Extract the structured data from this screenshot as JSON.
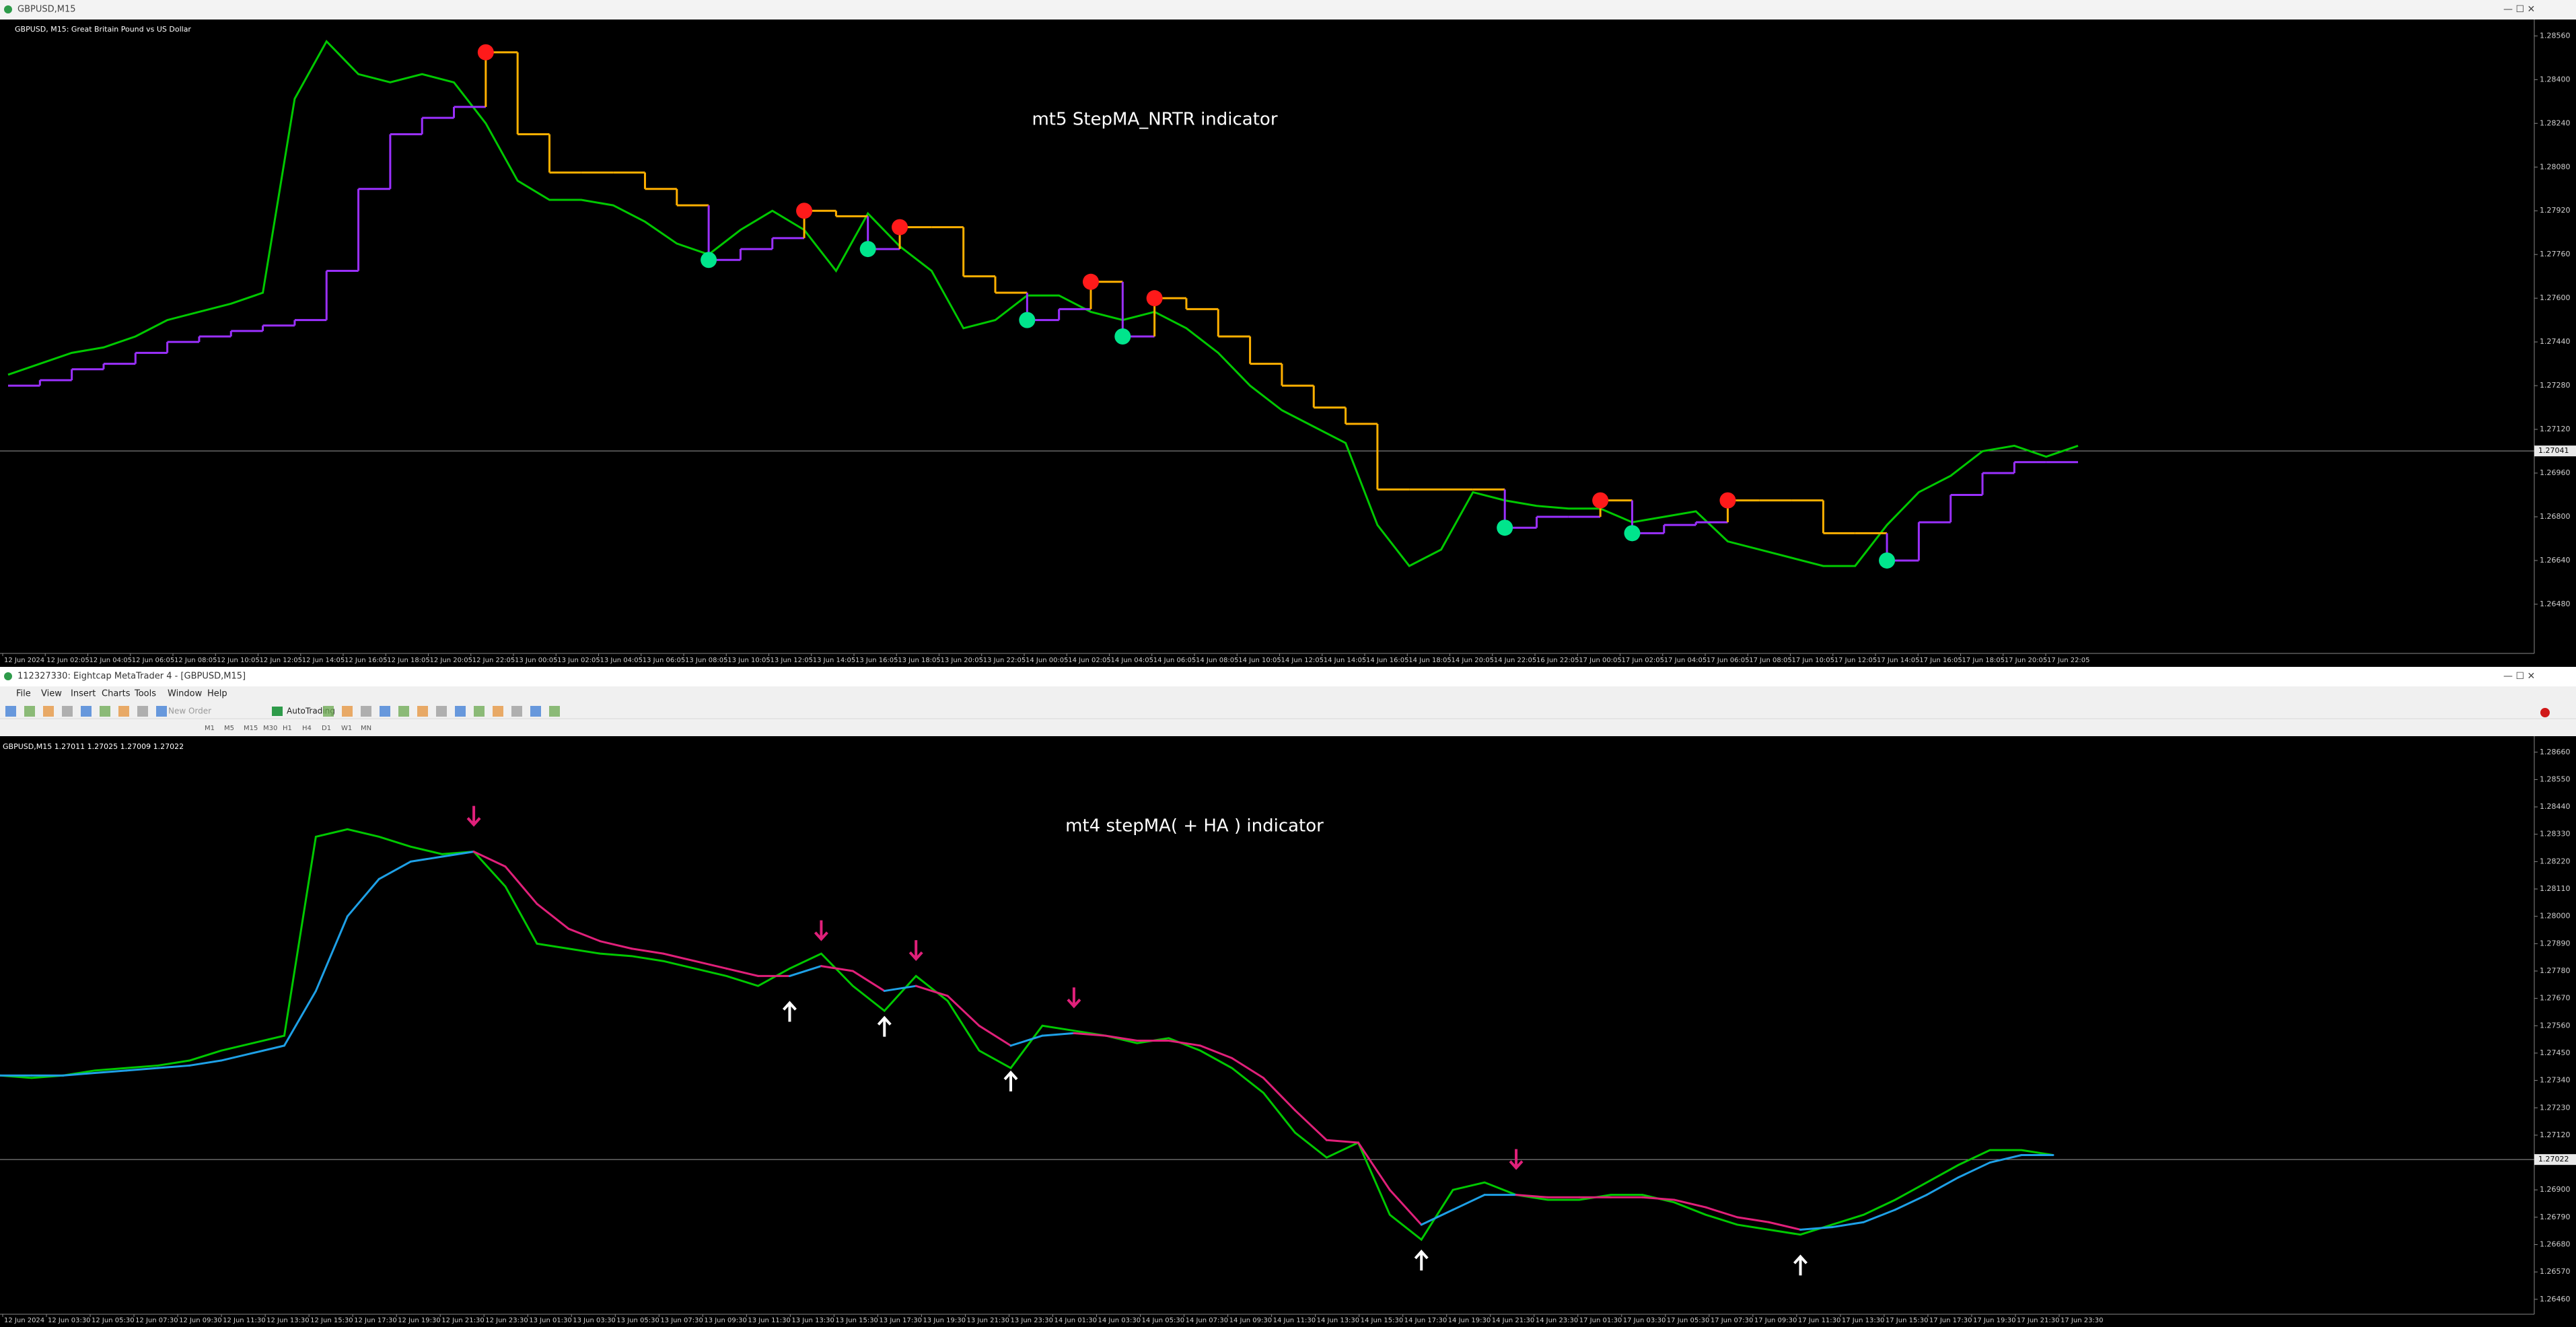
{
  "top_window": {
    "title": "GBPUSD,M15"
  },
  "mt4_window": {
    "title": "112327330: Eightcap MetaTrader 4 - [GBPUSD,M15]",
    "menu": [
      "File",
      "View",
      "Insert",
      "Charts",
      "Tools",
      "Window",
      "Help"
    ],
    "toolbar": {
      "new_order": "New Order",
      "autotrading": "AutoTrading",
      "timeframes": [
        "M1",
        "M5",
        "M15",
        "M30",
        "H1",
        "H4",
        "D1",
        "W1",
        "MN"
      ]
    }
  },
  "chart_data": [
    {
      "type": "line",
      "line_style": "step",
      "header": "GBPUSD, M15:  Great Britain Pound vs US Dollar",
      "annotation": "mt5 StepMA_NRTR indicator",
      "ylim": [
        1.263,
        1.2862
      ],
      "yticks": [
        {
          "value": 1.2648,
          "label": "1.26480"
        },
        {
          "value": 1.2664,
          "label": "1.26640"
        },
        {
          "value": 1.268,
          "label": "1.26800"
        },
        {
          "value": 1.2696,
          "label": "1.26960"
        },
        {
          "value": 1.2712,
          "label": "1.27120"
        },
        {
          "value": 1.2728,
          "label": "1.27280"
        },
        {
          "value": 1.2744,
          "label": "1.27440"
        },
        {
          "value": 1.276,
          "label": "1.27600"
        },
        {
          "value": 1.2776,
          "label": "1.27760"
        },
        {
          "value": 1.2792,
          "label": "1.27920"
        },
        {
          "value": 1.2808,
          "label": "1.28080"
        },
        {
          "value": 1.2824,
          "label": "1.28240"
        },
        {
          "value": 1.284,
          "label": "1.28400"
        },
        {
          "value": 1.2856,
          "label": "1.28560"
        }
      ],
      "current_price": 1.27041,
      "time_labels": [
        "12 Jun 2024",
        "12 Jun 02:05",
        "12 Jun 04:05",
        "12 Jun 06:05",
        "12 Jun 08:05",
        "12 Jun 10:05",
        "12 Jun 12:05",
        "12 Jun 14:05",
        "12 Jun 16:05",
        "12 Jun 18:05",
        "12 Jun 20:05",
        "12 Jun 22:05",
        "13 Jun 00:05",
        "13 Jun 02:05",
        "13 Jun 04:05",
        "13 Jun 06:05",
        "13 Jun 08:05",
        "13 Jun 10:05",
        "13 Jun 12:05",
        "13 Jun 14:05",
        "13 Jun 16:05",
        "13 Jun 18:05",
        "13 Jun 20:05",
        "13 Jun 22:05",
        "14 Jun 00:05",
        "14 Jun 02:05",
        "14 Jun 04:05",
        "14 Jun 06:05",
        "14 Jun 08:05",
        "14 Jun 10:05",
        "14 Jun 12:05",
        "14 Jun 14:05",
        "14 Jun 16:05",
        "14 Jun 18:05",
        "14 Jun 20:05",
        "14 Jun 22:05",
        "16 Jun 22:05",
        "17 Jun 00:05",
        "17 Jun 02:05",
        "17 Jun 04:05",
        "17 Jun 06:05",
        "17 Jun 08:05",
        "17 Jun 10:05",
        "17 Jun 12:05",
        "17 Jun 14:05",
        "17 Jun 16:05",
        "17 Jun 18:05",
        "17 Jun 20:05",
        "17 Jun 22:05"
      ],
      "price": {
        "color": "#00c800",
        "values": [
          1.2732,
          1.2736,
          1.274,
          1.2742,
          1.2746,
          1.2752,
          1.2755,
          1.2758,
          1.2762,
          1.2833,
          1.2854,
          1.2842,
          1.2839,
          1.2842,
          1.2839,
          1.2824,
          1.2803,
          1.2796,
          1.2796,
          1.2794,
          1.2788,
          1.278,
          1.2776,
          1.2785,
          1.2792,
          1.2785,
          1.277,
          1.2791,
          1.2779,
          1.277,
          1.2749,
          1.2752,
          1.2761,
          1.2761,
          1.2755,
          1.2752,
          1.2755,
          1.2749,
          1.274,
          1.2728,
          1.2719,
          1.2713,
          1.2707,
          1.2677,
          1.2662,
          1.2668,
          1.2689,
          1.2686,
          1.2684,
          1.2683,
          1.2683,
          1.2678,
          1.268,
          1.2682,
          1.2671,
          1.2668,
          1.2665,
          1.2662,
          1.2662,
          1.2677,
          1.2689,
          1.2695,
          1.2704,
          1.2706,
          1.2702,
          1.2706
        ]
      },
      "indicator": {
        "up_color": "#9b30ff",
        "down_color": "#ffb000",
        "buy_color": "#00e58c",
        "sell_color": "#ff1a1a",
        "values": [
          1.2728,
          1.273,
          1.2734,
          1.2736,
          1.274,
          1.2744,
          1.2746,
          1.2748,
          1.275,
          1.2752,
          1.277,
          1.28,
          1.282,
          1.2826,
          1.283,
          1.285,
          1.282,
          1.2806,
          1.2806,
          1.2806,
          1.28,
          1.2794,
          1.2774,
          1.2778,
          1.2782,
          1.2792,
          1.279,
          1.2778,
          1.2786,
          1.2786,
          1.2768,
          1.2762,
          1.2752,
          1.2756,
          1.2766,
          1.2746,
          1.276,
          1.2756,
          1.2746,
          1.2736,
          1.2728,
          1.272,
          1.2714,
          1.269,
          1.269,
          1.269,
          1.269,
          1.2676,
          1.268,
          1.268,
          1.2686,
          1.2674,
          1.2677,
          1.2678,
          1.2686,
          1.2686,
          1.2686,
          1.2674,
          1.2674,
          1.2664,
          1.2678,
          1.2688,
          1.2696,
          1.27,
          1.27,
          1.27
        ]
      }
    },
    {
      "type": "line",
      "line_style": "smooth",
      "header": "GBPUSD,M15  1.27011 1.27025 1.27009 1.27022",
      "annotation": "mt4 stepMA( + HA ) indicator",
      "ylim": [
        1.264,
        1.287
      ],
      "yticks": [
        {
          "value": 1.2646,
          "label": "1.26460"
        },
        {
          "value": 1.2657,
          "label": "1.26570"
        },
        {
          "value": 1.2668,
          "label": "1.26680"
        },
        {
          "value": 1.2679,
          "label": "1.26790"
        },
        {
          "value": 1.269,
          "label": "1.26900"
        },
        {
          "value": 1.2701,
          "label": "1.27010"
        },
        {
          "value": 1.2712,
          "label": "1.27120"
        },
        {
          "value": 1.2723,
          "label": "1.27230"
        },
        {
          "value": 1.2734,
          "label": "1.27340"
        },
        {
          "value": 1.2745,
          "label": "1.27450"
        },
        {
          "value": 1.2756,
          "label": "1.27560"
        },
        {
          "value": 1.2767,
          "label": "1.27670"
        },
        {
          "value": 1.2778,
          "label": "1.27780"
        },
        {
          "value": 1.2789,
          "label": "1.27890"
        },
        {
          "value": 1.28,
          "label": "1.28000"
        },
        {
          "value": 1.2811,
          "label": "1.28110"
        },
        {
          "value": 1.2822,
          "label": "1.28220"
        },
        {
          "value": 1.2833,
          "label": "1.28330"
        },
        {
          "value": 1.2844,
          "label": "1.28440"
        },
        {
          "value": 1.2855,
          "label": "1.28550"
        },
        {
          "value": 1.2866,
          "label": "1.28660"
        }
      ],
      "current_price": 1.27022,
      "time_labels": [
        "12 Jun 2024",
        "12 Jun 03:30",
        "12 Jun 05:30",
        "12 Jun 07:30",
        "12 Jun 09:30",
        "12 Jun 11:30",
        "12 Jun 13:30",
        "12 Jun 15:30",
        "12 Jun 17:30",
        "12 Jun 19:30",
        "12 Jun 21:30",
        "12 Jun 23:30",
        "13 Jun 01:30",
        "13 Jun 03:30",
        "13 Jun 05:30",
        "13 Jun 07:30",
        "13 Jun 09:30",
        "13 Jun 11:30",
        "13 Jun 13:30",
        "13 Jun 15:30",
        "13 Jun 17:30",
        "13 Jun 19:30",
        "13 Jun 21:30",
        "13 Jun 23:30",
        "14 Jun 01:30",
        "14 Jun 03:30",
        "14 Jun 05:30",
        "14 Jun 07:30",
        "14 Jun 09:30",
        "14 Jun 11:30",
        "14 Jun 13:30",
        "14 Jun 15:30",
        "14 Jun 17:30",
        "14 Jun 19:30",
        "14 Jun 21:30",
        "14 Jun 23:30",
        "17 Jun 01:30",
        "17 Jun 03:30",
        "17 Jun 05:30",
        "17 Jun 07:30",
        "17 Jun 09:30",
        "17 Jun 11:30",
        "17 Jun 13:30",
        "17 Jun 15:30",
        "17 Jun 17:30",
        "17 Jun 19:30",
        "17 Jun 21:30",
        "17 Jun 23:30"
      ],
      "price": {
        "color": "#00c800",
        "values": [
          1.2736,
          1.2735,
          1.2736,
          1.2738,
          1.2739,
          1.274,
          1.2742,
          1.2746,
          1.2749,
          1.2752,
          1.2832,
          1.2835,
          1.2832,
          1.2828,
          1.2825,
          1.2826,
          1.2812,
          1.2789,
          1.2787,
          1.2785,
          1.2784,
          1.2782,
          1.2779,
          1.2776,
          1.2772,
          1.2779,
          1.2785,
          1.2772,
          1.2762,
          1.2776,
          1.2766,
          1.2746,
          1.2739,
          1.2756,
          1.2754,
          1.2752,
          1.2749,
          1.2751,
          1.2746,
          1.2739,
          1.2729,
          1.2713,
          1.2703,
          1.2709,
          1.268,
          1.267,
          1.269,
          1.2693,
          1.2688,
          1.2686,
          1.2686,
          1.2688,
          1.2688,
          1.2685,
          1.268,
          1.2676,
          1.2674,
          1.2672,
          1.2676,
          1.268,
          1.2686,
          1.2693,
          1.27,
          1.2706,
          1.2706,
          1.2704
        ]
      },
      "indicator": {
        "up_color": "#1ea0e6",
        "down_color": "#e0207a",
        "buy_color": "#ffffff",
        "sell_color": "#e0207a",
        "values": [
          1.2736,
          1.2736,
          1.2736,
          1.2737,
          1.2738,
          1.2739,
          1.274,
          1.2742,
          1.2745,
          1.2748,
          1.277,
          1.28,
          1.2815,
          1.2822,
          1.2824,
          1.2826,
          1.282,
          1.2805,
          1.2795,
          1.279,
          1.2787,
          1.2785,
          1.2782,
          1.2779,
          1.2776,
          1.2776,
          1.278,
          1.2778,
          1.277,
          1.2772,
          1.2768,
          1.2756,
          1.2748,
          1.2752,
          1.2753,
          1.2752,
          1.275,
          1.275,
          1.2748,
          1.2743,
          1.2735,
          1.2722,
          1.271,
          1.2709,
          1.269,
          1.2676,
          1.2682,
          1.2688,
          1.2688,
          1.2687,
          1.2687,
          1.2687,
          1.2687,
          1.2686,
          1.2683,
          1.2679,
          1.2677,
          1.2674,
          1.2675,
          1.2677,
          1.2682,
          1.2688,
          1.2695,
          1.2701,
          1.2704,
          1.2704
        ]
      }
    }
  ]
}
